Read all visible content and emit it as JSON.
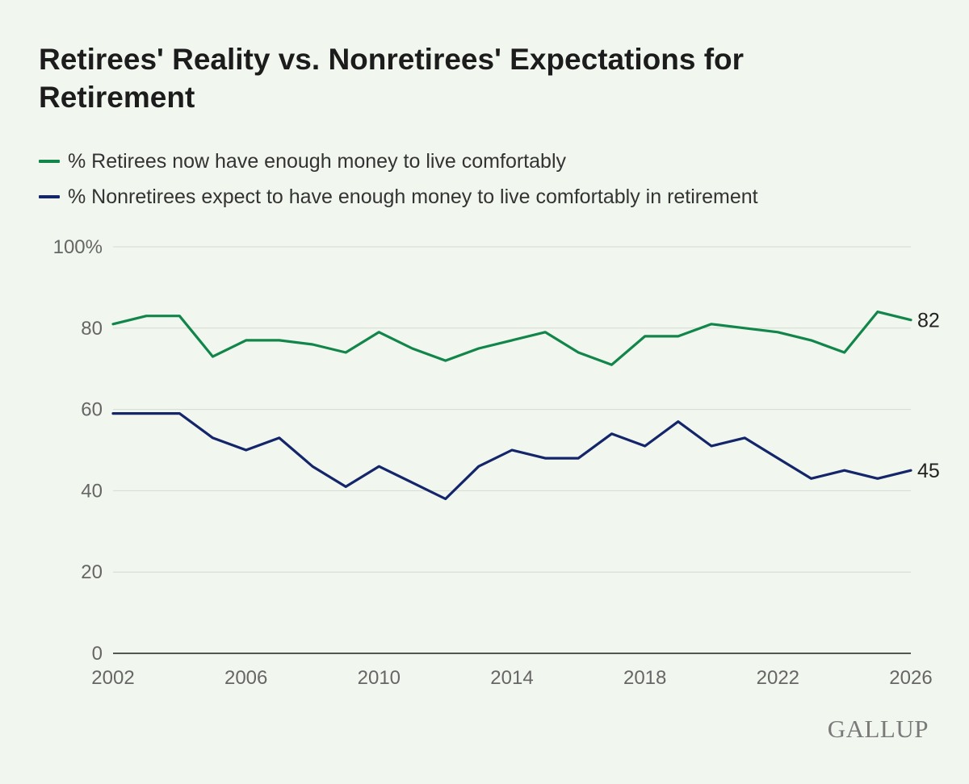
{
  "chart_data": {
    "type": "line",
    "title": "Retirees' Reality vs. Nonretirees' Expectations for Retirement",
    "x": [
      2002,
      2003,
      2004,
      2005,
      2006,
      2007,
      2008,
      2009,
      2010,
      2011,
      2012,
      2013,
      2014,
      2015,
      2016,
      2017,
      2018,
      2019,
      2020,
      2021,
      2022,
      2023,
      2024,
      2025,
      2026
    ],
    "xticks": [
      "2002",
      "2006",
      "2010",
      "2014",
      "2018",
      "2022",
      "2026"
    ],
    "yticks": [
      "0",
      "20",
      "40",
      "60",
      "80",
      "100%"
    ],
    "ylim": [
      0,
      100
    ],
    "xlim": [
      2002,
      2026
    ],
    "grid": true,
    "legend_position": "top-left",
    "series": [
      {
        "name": "% Retirees now have enough money to live comfortably",
        "color": "#12864a",
        "values": [
          81,
          83,
          83,
          73,
          77,
          77,
          76,
          74,
          79,
          75,
          72,
          75,
          77,
          79,
          74,
          71,
          78,
          78,
          81,
          80,
          79,
          77,
          74,
          84,
          82
        ],
        "end_label": "82"
      },
      {
        "name": "% Nonretirees expect to have enough money to live comfortably in retirement",
        "color": "#14256a",
        "values": [
          59,
          59,
          59,
          53,
          50,
          53,
          46,
          41,
          46,
          42,
          38,
          46,
          50,
          48,
          48,
          54,
          51,
          57,
          51,
          53,
          48,
          43,
          45,
          43,
          45
        ],
        "end_label": "45"
      }
    ]
  },
  "source": "GALLUP"
}
